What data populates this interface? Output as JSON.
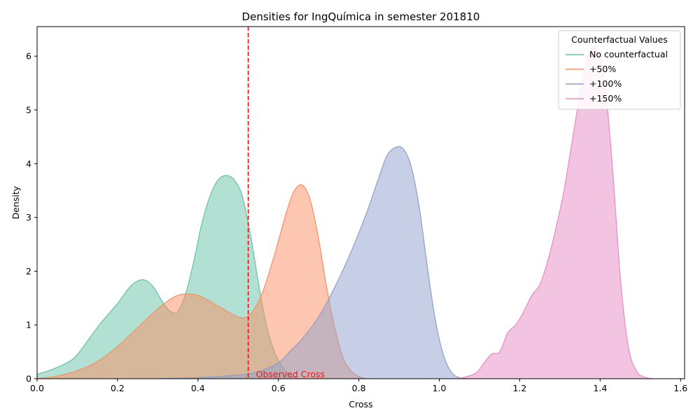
{
  "chart_data": {
    "type": "area",
    "title": "Densities for IngQuímica in semester 201810",
    "xlabel": "Cross",
    "ylabel": "Density",
    "xlim": [
      0,
      1.61
    ],
    "ylim": [
      0,
      6.55
    ],
    "xticks": [
      0.0,
      0.2,
      0.4,
      0.6,
      0.8,
      1.0,
      1.2,
      1.4,
      1.6
    ],
    "xtick_labels": [
      "0.0",
      "0.2",
      "0.4",
      "0.6",
      "0.8",
      "1.0",
      "1.2",
      "1.4",
      "1.6"
    ],
    "yticks": [
      0,
      1,
      2,
      3,
      4,
      5,
      6
    ],
    "ytick_labels": [
      "0",
      "1",
      "2",
      "3",
      "4",
      "5",
      "6"
    ],
    "grid": false,
    "legend": {
      "title": "Counterfactual Values",
      "placement": "top-right"
    },
    "observed_line": {
      "x": 0.525,
      "label": "Observed Cross",
      "color": "#e41a1c"
    },
    "series": [
      {
        "name": "No counterfactual",
        "color": "#66c2a5",
        "x": [
          0.0,
          0.04,
          0.08,
          0.1,
          0.13,
          0.16,
          0.2,
          0.23,
          0.25,
          0.27,
          0.29,
          0.31,
          0.33,
          0.35,
          0.37,
          0.39,
          0.41,
          0.43,
          0.45,
          0.47,
          0.49,
          0.51,
          0.53,
          0.55,
          0.57,
          0.59,
          0.61,
          0.63,
          0.65
        ],
        "y": [
          0.08,
          0.18,
          0.32,
          0.45,
          0.75,
          1.05,
          1.4,
          1.7,
          1.82,
          1.83,
          1.7,
          1.45,
          1.26,
          1.25,
          1.6,
          2.2,
          2.9,
          3.4,
          3.7,
          3.78,
          3.7,
          3.4,
          2.7,
          1.8,
          1.0,
          0.5,
          0.22,
          0.07,
          0.0
        ]
      },
      {
        "name": "+50%",
        "color": "#fc8d62",
        "x": [
          0.0,
          0.05,
          0.1,
          0.15,
          0.2,
          0.25,
          0.3,
          0.35,
          0.4,
          0.45,
          0.5,
          0.53,
          0.56,
          0.59,
          0.62,
          0.64,
          0.66,
          0.68,
          0.7,
          0.72,
          0.74,
          0.76,
          0.78,
          0.8,
          0.82
        ],
        "y": [
          0.0,
          0.05,
          0.15,
          0.32,
          0.6,
          0.95,
          1.3,
          1.55,
          1.55,
          1.35,
          1.15,
          1.2,
          1.6,
          2.3,
          3.1,
          3.5,
          3.6,
          3.3,
          2.6,
          1.7,
          0.95,
          0.4,
          0.15,
          0.04,
          0.0
        ]
      },
      {
        "name": "+100%",
        "color": "#8da0cb",
        "x": [
          0.3,
          0.4,
          0.45,
          0.5,
          0.55,
          0.6,
          0.63,
          0.66,
          0.7,
          0.74,
          0.78,
          0.82,
          0.85,
          0.87,
          0.89,
          0.91,
          0.93,
          0.95,
          0.97,
          0.99,
          1.01,
          1.03,
          1.05,
          1.07
        ],
        "y": [
          0.0,
          0.02,
          0.04,
          0.07,
          0.13,
          0.3,
          0.52,
          0.75,
          1.15,
          1.7,
          2.35,
          3.1,
          3.75,
          4.15,
          4.3,
          4.28,
          3.95,
          3.2,
          2.1,
          1.1,
          0.45,
          0.12,
          0.02,
          0.0
        ]
      },
      {
        "name": "+150%",
        "color": "#e78ac3",
        "x": [
          1.05,
          1.09,
          1.11,
          1.13,
          1.15,
          1.17,
          1.19,
          1.21,
          1.23,
          1.25,
          1.27,
          1.29,
          1.31,
          1.33,
          1.35,
          1.37,
          1.39,
          1.41,
          1.43,
          1.45,
          1.47,
          1.49,
          1.51,
          1.53
        ],
        "y": [
          0.0,
          0.1,
          0.28,
          0.46,
          0.5,
          0.85,
          1.0,
          1.25,
          1.55,
          1.75,
          2.2,
          2.8,
          3.5,
          4.4,
          5.3,
          6.0,
          6.15,
          5.6,
          4.0,
          1.9,
          0.6,
          0.15,
          0.03,
          0.0
        ]
      }
    ]
  }
}
